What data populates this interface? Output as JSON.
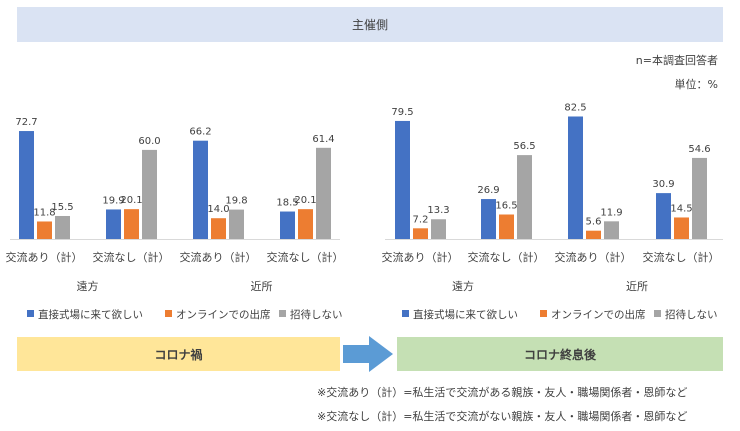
{
  "header": {
    "title": "主催側"
  },
  "notes": {
    "n": "n=本調査回答者",
    "unit": "単位：%"
  },
  "chart_data": [
    {
      "type": "bar",
      "phase": "コロナ禍",
      "categories": [
        "交流あり（計）",
        "交流なし（計）",
        "交流あり（計）",
        "交流なし（計）"
      ],
      "groups": [
        "遠方",
        "近所"
      ],
      "series": [
        {
          "name": "直接式場に来て欲しい",
          "values": [
            72.7,
            19.9,
            66.2,
            18.5
          ]
        },
        {
          "name": "オンラインでの出席",
          "values": [
            11.8,
            20.1,
            14.0,
            20.1
          ]
        },
        {
          "name": "招待しない",
          "values": [
            15.5,
            60.0,
            19.8,
            61.4
          ]
        }
      ]
    },
    {
      "type": "bar",
      "phase": "コロナ終息後",
      "categories": [
        "交流あり（計）",
        "交流なし（計）",
        "交流あり（計）",
        "交流なし（計）"
      ],
      "groups": [
        "遠方",
        "近所"
      ],
      "series": [
        {
          "name": "直接式場に来て欲しい",
          "values": [
            79.5,
            26.9,
            82.5,
            30.9
          ]
        },
        {
          "name": "オンラインでの出席",
          "values": [
            7.2,
            16.5,
            5.6,
            14.5
          ]
        },
        {
          "name": "招待しない",
          "values": [
            13.3,
            56.5,
            11.9,
            54.6
          ]
        }
      ]
    }
  ],
  "colors": {
    "series": [
      "#4472c4",
      "#ed7d31",
      "#a5a5a5"
    ],
    "left_band": "#ffe699",
    "right_band": "#c5e0b4",
    "arrow": "#5b9bd5"
  },
  "bands": {
    "left": "コロナ禍",
    "right": "コロナ終息後"
  },
  "footnotes": [
    "※交流あり（計）=私生活で交流がある親族・友人・職場関係者・恩師など",
    "※交流なし（計）=私生活で交流がない親族・友人・職場関係者・恩師など"
  ]
}
